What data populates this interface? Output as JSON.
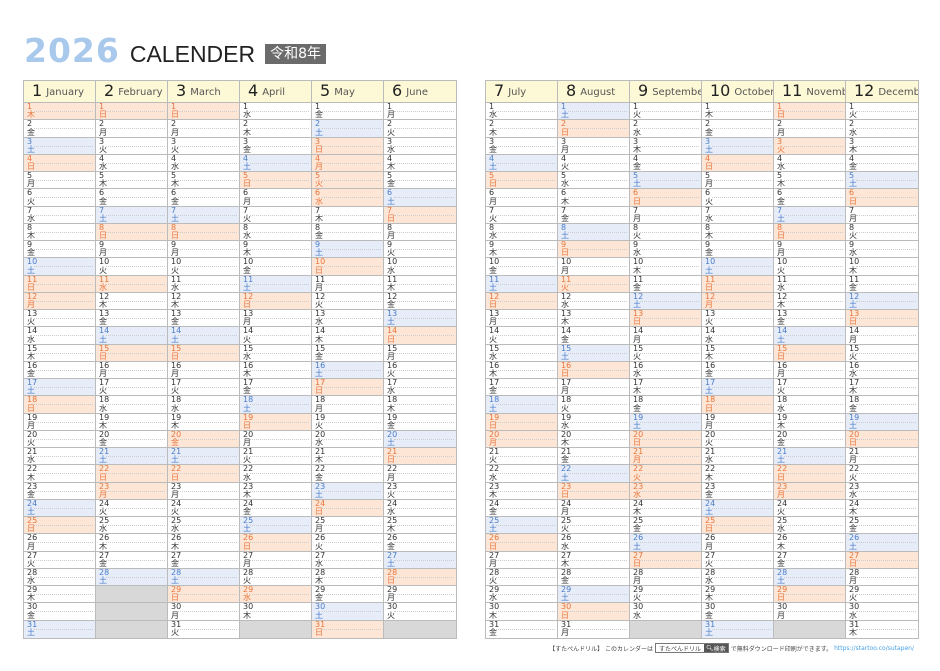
{
  "title": {
    "year": "2026",
    "word": "CALENDER",
    "era": "令和8年"
  },
  "weekdays": [
    "日",
    "月",
    "火",
    "水",
    "木",
    "金",
    "土"
  ],
  "months": [
    {
      "num": "1",
      "name": "January",
      "days": 31,
      "first": 4,
      "holidays": [
        1,
        12
      ]
    },
    {
      "num": "2",
      "name": "February",
      "days": 28,
      "first": 0,
      "holidays": [
        11,
        23
      ]
    },
    {
      "num": "3",
      "name": "March",
      "days": 31,
      "first": 0,
      "holidays": [
        20
      ]
    },
    {
      "num": "4",
      "name": "April",
      "days": 30,
      "first": 3,
      "holidays": [
        29
      ]
    },
    {
      "num": "5",
      "name": "May",
      "days": 31,
      "first": 5,
      "holidays": [
        3,
        4,
        5,
        6
      ]
    },
    {
      "num": "6",
      "name": "June",
      "days": 30,
      "first": 1,
      "holidays": []
    },
    {
      "num": "7",
      "name": "July",
      "days": 31,
      "first": 3,
      "holidays": [
        20
      ]
    },
    {
      "num": "8",
      "name": "August",
      "days": 31,
      "first": 6,
      "holidays": [
        11
      ]
    },
    {
      "num": "9",
      "name": "September",
      "days": 30,
      "first": 2,
      "holidays": [
        21,
        22,
        23
      ]
    },
    {
      "num": "10",
      "name": "October",
      "days": 31,
      "first": 4,
      "holidays": [
        12
      ]
    },
    {
      "num": "11",
      "name": "November",
      "days": 30,
      "first": 0,
      "holidays": [
        3,
        23
      ]
    },
    {
      "num": "12",
      "name": "December",
      "days": 31,
      "first": 2,
      "holidays": []
    }
  ],
  "colors": {
    "sunday_bg": "#fde6d6",
    "sunday_text": "#e8743b",
    "saturday_bg": "#e6ecf8",
    "saturday_text": "#4a7cc9",
    "header_bg": "#fdf8d6",
    "empty": "#d8d8d8",
    "year": "#a9c9ec"
  },
  "footer": {
    "pre": "【すたぺんドリル】 このカレンダーは",
    "search_text": "すたぺんドリル",
    "search_btn": "検索",
    "search_icon": "search-icon",
    "post": "で無料ダウンロード印刷ができます。",
    "url": "https://startoo.co/sutapen/"
  }
}
